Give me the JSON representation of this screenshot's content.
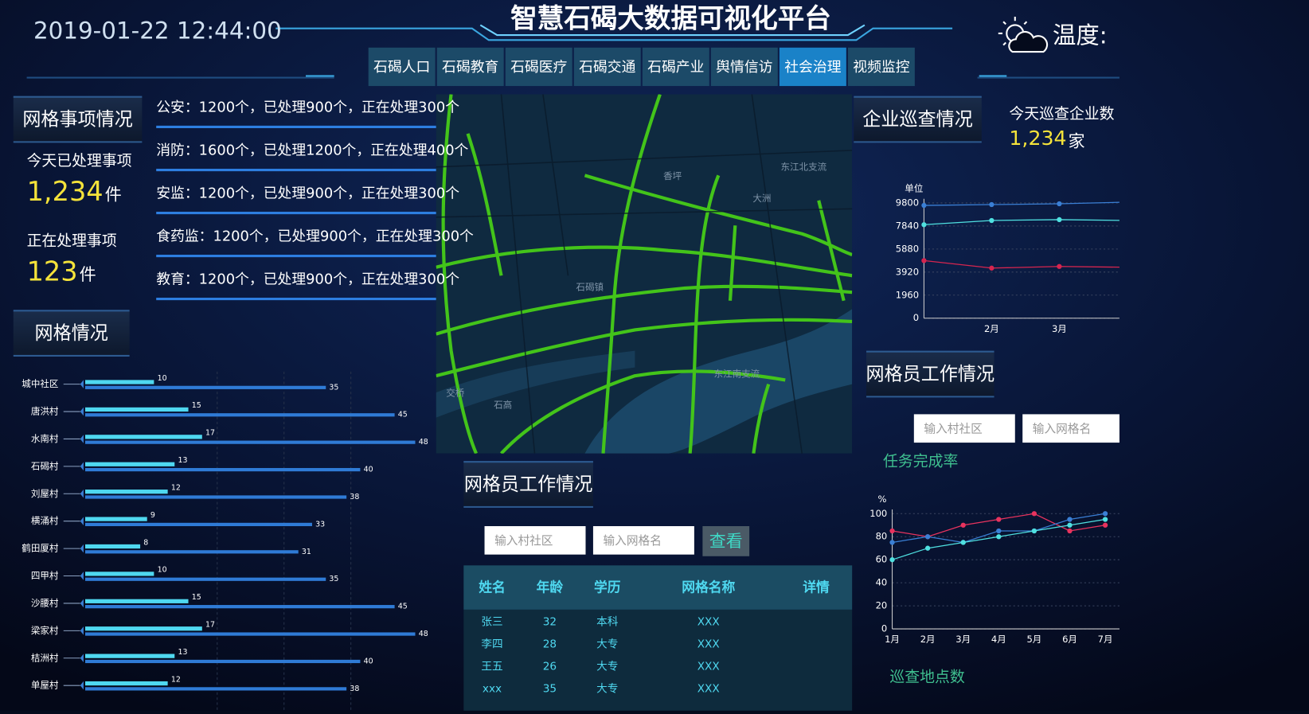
{
  "header": {
    "datetime": "2019-01-22 12:44:00",
    "title": "智慧石碣大数据可视化平台",
    "weather": "温度:"
  },
  "nav": {
    "items": [
      "石碣人口",
      "石碣教育",
      "石碣医疗",
      "石碣交通",
      "石碣产业",
      "舆情信访",
      "社会治理",
      "视频监控"
    ],
    "active": 6
  },
  "left": {
    "title": "网格事项情况",
    "stats": [
      {
        "label": "今天已处理事项",
        "value": "1,234",
        "unit": "件"
      },
      {
        "label": "正在处理事项",
        "value": "123",
        "unit": "件"
      }
    ],
    "items": [
      "公安：1200个，已处理900个，正在处理300个",
      "消防：1600个，已处理1200个，正在处理400个",
      "安监：1200个，已处理900个，正在处理300个",
      "食药监：1200个，已处理900个，正在处理300个",
      "教育：1200个，已处理900个，正在处理300个"
    ]
  },
  "grid_title": "网格情况",
  "map": {
    "labels": [
      "香坪",
      "大洲",
      "东江北支流",
      "石碣镇",
      "东江南支流",
      "石高",
      "交桥"
    ]
  },
  "workers": {
    "title": "网格员工作情况",
    "inputs": [
      "输入村社区",
      "输入网格名"
    ],
    "button": "查看",
    "table": {
      "columns": [
        "姓名",
        "年龄",
        "学历",
        "网格名称",
        "详情"
      ],
      "rows": [
        [
          "张三",
          "32",
          "本科",
          "XXX"
        ],
        [
          "李四",
          "28",
          "大专",
          "XXX"
        ],
        [
          "王五",
          "26",
          "大专",
          "XXX"
        ],
        [
          "xxx",
          "35",
          "大专",
          "XXX"
        ]
      ]
    }
  },
  "right": {
    "title": "企业巡查情况",
    "stat_label": "今天巡查企业数",
    "stat_value": "1,234",
    "stat_unit": "家"
  },
  "workers2": {
    "title": "网格员工作情况",
    "inputs": [
      "输入村社区",
      "输入网格名"
    ]
  },
  "patrol_title": "巡查地点数",
  "chart_data": [
    {
      "type": "bar",
      "orientation": "horizontal",
      "categories": [
        "城中社区",
        "唐洪村",
        "水南村",
        "石碣村",
        "刘屋村",
        "横涌村",
        "鹤田厦村",
        "四甲村",
        "沙腰村",
        "梁家村",
        "桔洲村",
        "单屋村"
      ],
      "series": [
        {
          "color": "#4fd8f0",
          "values": [
            10,
            15,
            17,
            13,
            12,
            9,
            8,
            10,
            15,
            17,
            13,
            12
          ]
        },
        {
          "color": "#2f7bd6",
          "values": [
            35,
            45,
            48,
            40,
            38,
            33,
            31,
            35,
            45,
            48,
            40,
            38
          ]
        }
      ],
      "xlim": [
        0,
        50
      ]
    },
    {
      "type": "line",
      "y_label": "单位",
      "categories": [
        null,
        "2月",
        "3月",
        null
      ],
      "series": [
        {
          "color": "#3a7fd5",
          "values": [
            9590,
            9660,
            9730,
            9870
          ]
        },
        {
          "color": "#4fe0e0",
          "values": [
            7950,
            8310,
            8380,
            8310
          ]
        },
        {
          "color": "#d6254f",
          "values": [
            4900,
            4260,
            4400,
            4330
          ]
        }
      ],
      "ylim": [
        0,
        9800
      ],
      "yticks": [
        0,
        1960,
        3920,
        5880,
        7840,
        9800
      ],
      "grid": true
    },
    {
      "type": "line",
      "title": "任务完成率",
      "y_label": "%",
      "categories": [
        "1月",
        "2月",
        "3月",
        "4月",
        "5月",
        "6月",
        "7月"
      ],
      "series": [
        {
          "color": "#e8335e",
          "values": [
            85,
            80,
            90,
            95,
            100,
            85,
            90
          ]
        },
        {
          "color": "#3a7fd5",
          "values": [
            75,
            80,
            75,
            85,
            85,
            95,
            100
          ]
        },
        {
          "color": "#4fe0e0",
          "values": [
            60,
            70,
            75,
            80,
            85,
            90,
            95
          ]
        }
      ],
      "ylim": [
        0,
        100
      ],
      "yticks": [
        0,
        20,
        40,
        60,
        80,
        100
      ],
      "grid": true
    }
  ]
}
